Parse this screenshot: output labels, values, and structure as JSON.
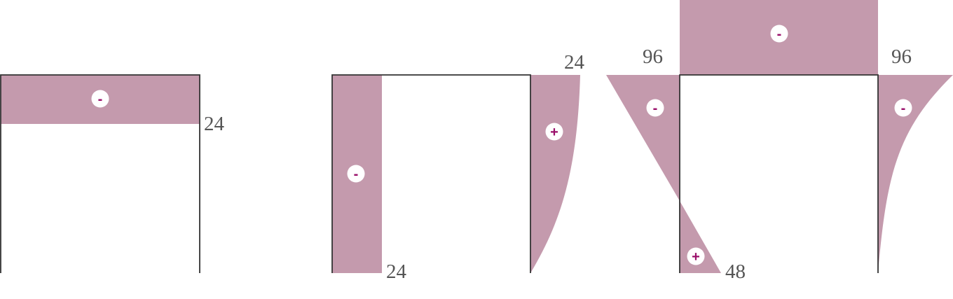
{
  "colors": {
    "area_fill": "#c49aad",
    "frame_stroke": "#333333",
    "sign_color": "#9a0f6a",
    "label_color": "#555555"
  },
  "diagram_1": {
    "value_label": "24",
    "sign_beam": "-"
  },
  "diagram_2": {
    "value_left_bottom": "24",
    "value_right_top": "24",
    "sign_left_column": "-",
    "sign_right_column": "+"
  },
  "diagram_3": {
    "value_top_left": "96",
    "value_top_right": "96",
    "value_bottom": "48",
    "sign_beam": "-",
    "sign_left_upper": "-",
    "sign_left_lower": "+",
    "sign_right_column": "-"
  }
}
